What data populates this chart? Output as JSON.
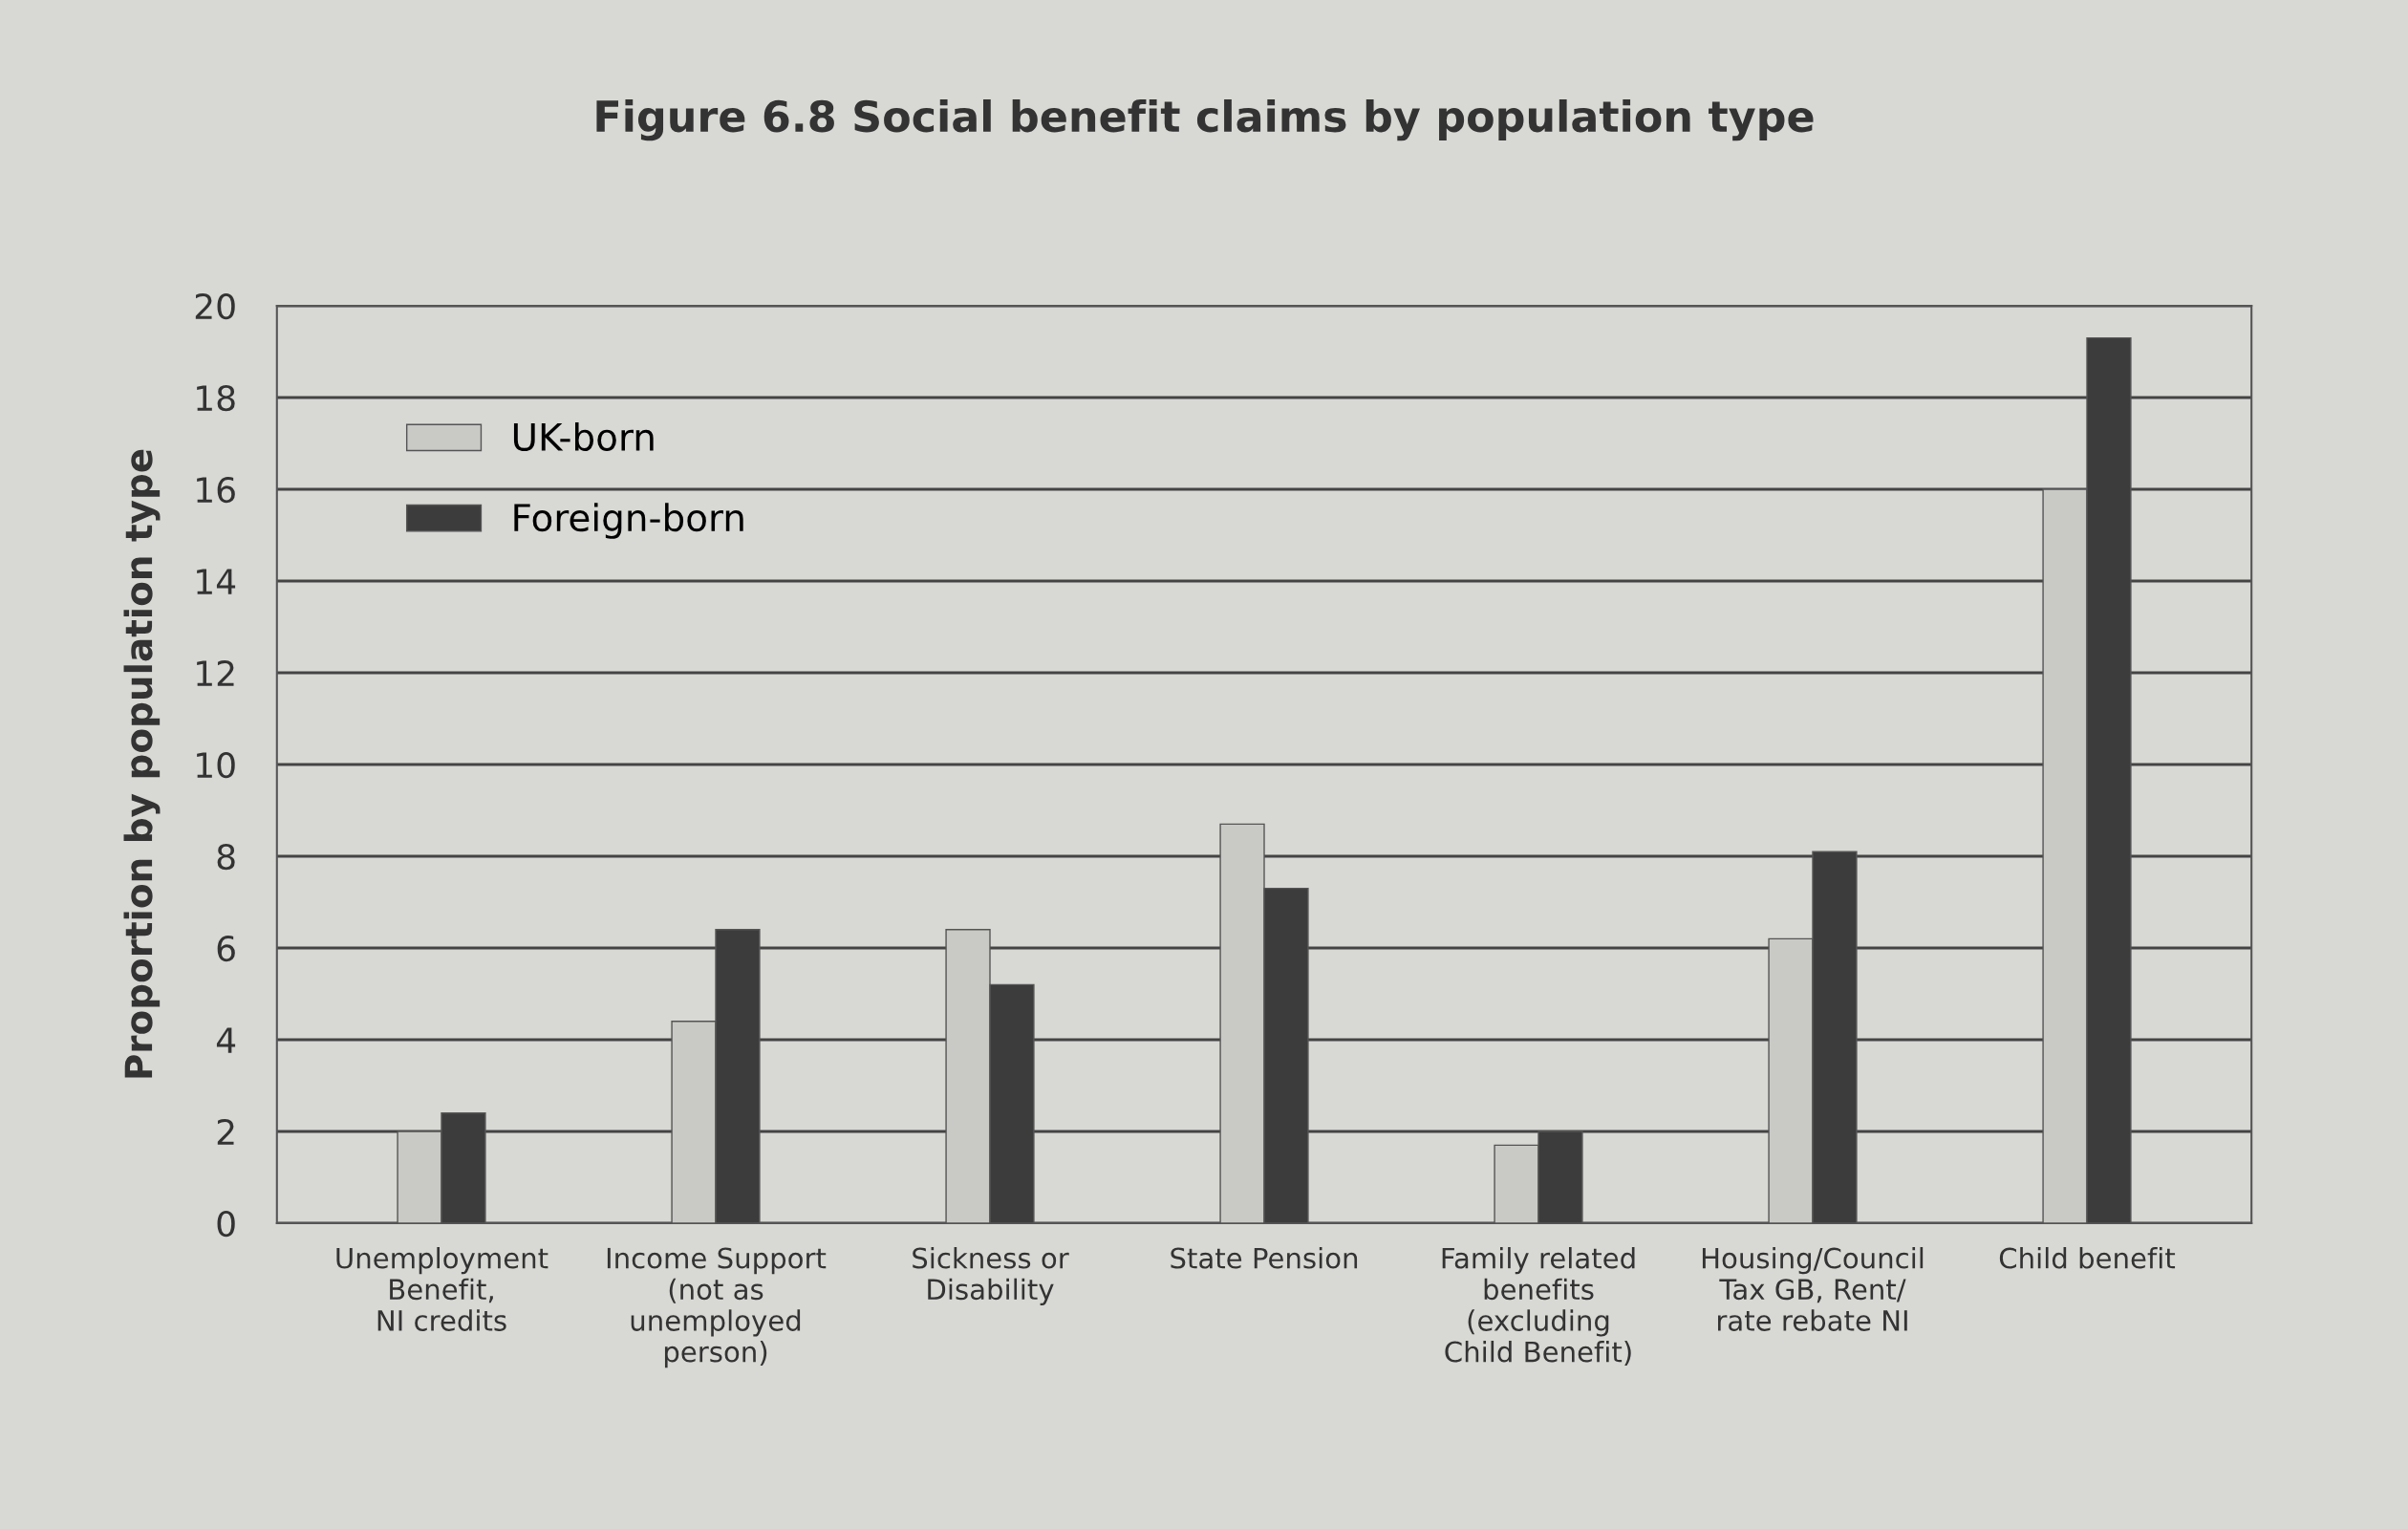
{
  "chart_data": {
    "type": "bar",
    "title": "Figure 6.8 Social benefit claims by population type",
    "ylabel": "Proportion by population type",
    "categories": [
      "Unemployment\nBenefit,\nNI credits",
      "Income Support\n(not as\nunemployed\nperson)",
      "Sickness or\nDisability",
      "State Pension",
      "Family related\nbenefits\n(excluding\nChild Benefit)",
      "Housing/Council\nTax GB, Rent/\nrate rebate NI",
      "Child benefit"
    ],
    "series": [
      {
        "name": "UK-born",
        "color": "#c9c9c5",
        "values": [
          2.0,
          4.4,
          6.4,
          8.7,
          1.7,
          6.2,
          16.0
        ]
      },
      {
        "name": "Foreign-born",
        "color": "#3c3c3c",
        "values": [
          2.4,
          6.4,
          5.2,
          7.3,
          2.0,
          8.1,
          19.3
        ]
      }
    ],
    "ylim": [
      0,
      20
    ],
    "yticks": [
      0,
      2,
      4,
      6,
      8,
      10,
      12,
      14,
      16,
      18,
      20
    ],
    "grid": "y",
    "legend": "top left"
  }
}
